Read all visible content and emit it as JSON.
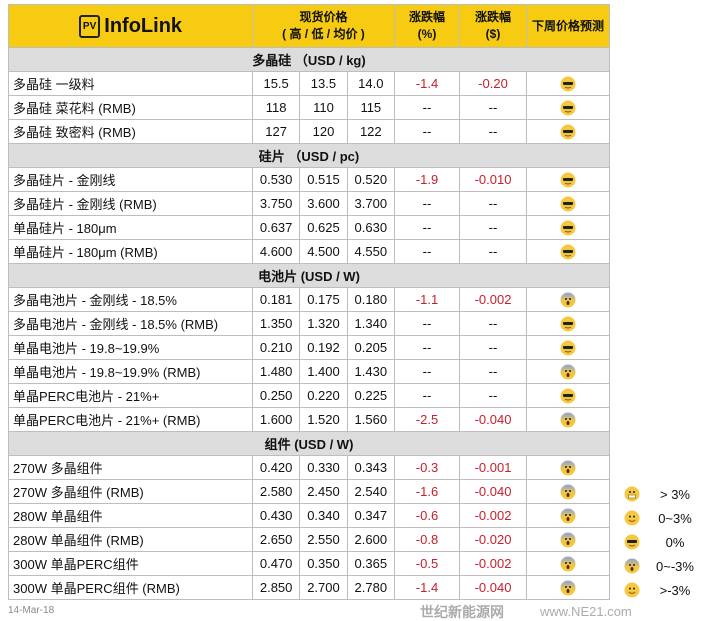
{
  "header": {
    "logo_badge": "PV",
    "logo_text": "InfoLink",
    "spot_price": "现货价格",
    "spot_sub": "( 高 / 低 / 均价 )",
    "change_pct": "涨跌幅",
    "change_pct_unit": "(%)",
    "change_usd": "涨跌幅",
    "change_usd_unit": "($)",
    "forecast": "下周价格预测"
  },
  "sections": [
    {
      "title": "多晶硅 （USD / kg)",
      "rows": [
        {
          "label": "多晶硅 一级料",
          "high": "15.5",
          "low": "13.5",
          "avg": "14.0",
          "pct": "-1.4",
          "usd": "-0.20",
          "forecast": "sunglasses"
        },
        {
          "label": "多晶硅 菜花料 (RMB)",
          "high": "118",
          "low": "110",
          "avg": "115",
          "pct": "--",
          "usd": "--",
          "forecast": "sunglasses"
        },
        {
          "label": "多晶硅 致密料 (RMB)",
          "high": "127",
          "low": "120",
          "avg": "122",
          "pct": "--",
          "usd": "--",
          "forecast": "sunglasses"
        }
      ]
    },
    {
      "title": "硅片 （USD / pc)",
      "rows": [
        {
          "label": "多晶硅片 - 金刚线",
          "high": "0.530",
          "low": "0.515",
          "avg": "0.520",
          "pct": "-1.9",
          "usd": "-0.010",
          "forecast": "sunglasses"
        },
        {
          "label": "多晶硅片 - 金刚线 (RMB)",
          "high": "3.750",
          "low": "3.600",
          "avg": "3.700",
          "pct": "--",
          "usd": "--",
          "forecast": "sunglasses"
        },
        {
          "label": "单晶硅片 - 180μm",
          "high": "0.637",
          "low": "0.625",
          "avg": "0.630",
          "pct": "--",
          "usd": "--",
          "forecast": "sunglasses"
        },
        {
          "label": "单晶硅片 - 180μm (RMB)",
          "high": "4.600",
          "low": "4.500",
          "avg": "4.550",
          "pct": "--",
          "usd": "--",
          "forecast": "sunglasses"
        }
      ]
    },
    {
      "title": "电池片 (USD / W)",
      "rows": [
        {
          "label": "多晶电池片 - 金刚线 - 18.5%",
          "high": "0.181",
          "low": "0.175",
          "avg": "0.180",
          "pct": "-1.1",
          "usd": "-0.002",
          "forecast": "scream"
        },
        {
          "label": "多晶电池片 - 金刚线 - 18.5% (RMB)",
          "high": "1.350",
          "low": "1.320",
          "avg": "1.340",
          "pct": "--",
          "usd": "--",
          "forecast": "sunglasses"
        },
        {
          "label": "单晶电池片 - 19.8~19.9%",
          "high": "0.210",
          "low": "0.192",
          "avg": "0.205",
          "pct": "--",
          "usd": "--",
          "forecast": "sunglasses"
        },
        {
          "label": "单晶电池片 - 19.8~19.9% (RMB)",
          "high": "1.480",
          "low": "1.400",
          "avg": "1.430",
          "pct": "--",
          "usd": "--",
          "forecast": "scream"
        },
        {
          "label": "单晶PERC电池片 - 21%+",
          "high": "0.250",
          "low": "0.220",
          "avg": "0.225",
          "pct": "--",
          "usd": "--",
          "forecast": "sunglasses"
        },
        {
          "label": "单晶PERC电池片 - 21%+ (RMB)",
          "high": "1.600",
          "low": "1.520",
          "avg": "1.560",
          "pct": "-2.5",
          "usd": "-0.040",
          "forecast": "scream"
        }
      ]
    },
    {
      "title": "组件 (USD / W)",
      "rows": [
        {
          "label": "270W 多晶组件",
          "high": "0.420",
          "low": "0.330",
          "avg": "0.343",
          "pct": "-0.3",
          "usd": "-0.001",
          "forecast": "scream"
        },
        {
          "label": "270W 多晶组件 (RMB)",
          "high": "2.580",
          "low": "2.450",
          "avg": "2.540",
          "pct": "-1.6",
          "usd": "-0.040",
          "forecast": "scream"
        },
        {
          "label": "280W 单晶组件",
          "high": "0.430",
          "low": "0.340",
          "avg": "0.347",
          "pct": "-0.6",
          "usd": "-0.002",
          "forecast": "scream"
        },
        {
          "label": "280W 单晶组件 (RMB)",
          "high": "2.650",
          "low": "2.550",
          "avg": "2.600",
          "pct": "-0.8",
          "usd": "-0.020",
          "forecast": "scream"
        },
        {
          "label": "300W 单晶PERC组件",
          "high": "0.470",
          "low": "0.350",
          "avg": "0.365",
          "pct": "-0.5",
          "usd": "-0.002",
          "forecast": "scream"
        },
        {
          "label": "300W 单晶PERC组件 (RMB)",
          "high": "2.850",
          "low": "2.700",
          "avg": "2.780",
          "pct": "-1.4",
          "usd": "-0.040",
          "forecast": "scream"
        }
      ]
    }
  ],
  "legend": [
    {
      "icon": "grin",
      "text": "> 3%"
    },
    {
      "icon": "smile",
      "text": "0~3%"
    },
    {
      "icon": "sunglasses",
      "text": "0%"
    },
    {
      "icon": "scream",
      "text": "0~-3%"
    },
    {
      "icon": "sweat",
      "text": ">-3%"
    }
  ],
  "date": "14-Mar-18",
  "watermark": "世纪新能源网",
  "watermark_url": "www.NE21.com",
  "colors": {
    "header": "#f6cb12",
    "section": "#dcdcdc",
    "negative": "#c8202a"
  }
}
